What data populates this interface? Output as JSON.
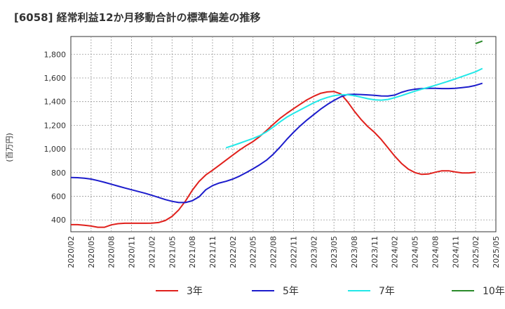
{
  "chart_data": {
    "type": "line",
    "title": "[6058]  経常利益12か月移動合計の標準偏差の推移",
    "ylabel": "(百万円)",
    "xlabel": "",
    "ylim": [
      300,
      1950
    ],
    "yticks": [
      400,
      600,
      800,
      1000,
      1200,
      1400,
      1600,
      1800
    ],
    "ytick_labels": [
      "400",
      "600",
      "800",
      "1,000",
      "1,200",
      "1,400",
      "1,600",
      "1,800"
    ],
    "xticks": [
      "2020/02",
      "2020/05",
      "2020/08",
      "2020/11",
      "2021/02",
      "2021/05",
      "2021/08",
      "2021/11",
      "2022/02",
      "2022/05",
      "2022/08",
      "2022/11",
      "2023/02",
      "2023/05",
      "2023/08",
      "2023/11",
      "2024/02",
      "2024/05",
      "2024/08",
      "2024/11",
      "2025/02",
      "2025/05"
    ],
    "grid": true,
    "legend_position": "bottom",
    "series": [
      {
        "name": "3年",
        "color": "#e0201c",
        "points": [
          [
            "2020/02",
            360
          ],
          [
            "2020/03",
            360
          ],
          [
            "2020/04",
            355
          ],
          [
            "2020/05",
            348
          ],
          [
            "2020/06",
            338
          ],
          [
            "2020/07",
            338
          ],
          [
            "2020/08",
            358
          ],
          [
            "2020/09",
            368
          ],
          [
            "2020/10",
            372
          ],
          [
            "2020/11",
            372
          ],
          [
            "2020/12",
            372
          ],
          [
            "2021/01",
            372
          ],
          [
            "2021/02",
            373
          ],
          [
            "2021/03",
            378
          ],
          [
            "2021/04",
            395
          ],
          [
            "2021/05",
            430
          ],
          [
            "2021/06",
            485
          ],
          [
            "2021/07",
            560
          ],
          [
            "2021/08",
            650
          ],
          [
            "2021/09",
            725
          ],
          [
            "2021/10",
            780
          ],
          [
            "2021/11",
            820
          ],
          [
            "2021/12",
            862
          ],
          [
            "2022/01",
            905
          ],
          [
            "2022/02",
            948
          ],
          [
            "2022/03",
            990
          ],
          [
            "2022/04",
            1028
          ],
          [
            "2022/05",
            1062
          ],
          [
            "2022/06",
            1105
          ],
          [
            "2022/07",
            1155
          ],
          [
            "2022/08",
            1208
          ],
          [
            "2022/09",
            1258
          ],
          [
            "2022/10",
            1300
          ],
          [
            "2022/11",
            1340
          ],
          [
            "2022/12",
            1378
          ],
          [
            "2023/01",
            1415
          ],
          [
            "2023/02",
            1445
          ],
          [
            "2023/03",
            1470
          ],
          [
            "2023/04",
            1482
          ],
          [
            "2023/05",
            1485
          ],
          [
            "2023/06",
            1465
          ],
          [
            "2023/07",
            1400
          ],
          [
            "2023/08",
            1320
          ],
          [
            "2023/09",
            1250
          ],
          [
            "2023/10",
            1190
          ],
          [
            "2023/11",
            1140
          ],
          [
            "2023/12",
            1080
          ],
          [
            "2024/01",
            1010
          ],
          [
            "2024/02",
            940
          ],
          [
            "2024/03",
            878
          ],
          [
            "2024/04",
            830
          ],
          [
            "2024/05",
            800
          ],
          [
            "2024/06",
            785
          ],
          [
            "2024/07",
            788
          ],
          [
            "2024/08",
            803
          ],
          [
            "2024/09",
            815
          ],
          [
            "2024/10",
            815
          ],
          [
            "2024/11",
            805
          ],
          [
            "2024/12",
            797
          ],
          [
            "2025/01",
            797
          ],
          [
            "2025/02",
            803
          ]
        ]
      },
      {
        "name": "5年",
        "color": "#1c1ccc",
        "points": [
          [
            "2020/02",
            758
          ],
          [
            "2020/03",
            757
          ],
          [
            "2020/04",
            753
          ],
          [
            "2020/05",
            745
          ],
          [
            "2020/06",
            732
          ],
          [
            "2020/07",
            718
          ],
          [
            "2020/08",
            702
          ],
          [
            "2020/09",
            686
          ],
          [
            "2020/10",
            670
          ],
          [
            "2020/11",
            655
          ],
          [
            "2020/12",
            640
          ],
          [
            "2021/01",
            625
          ],
          [
            "2021/02",
            608
          ],
          [
            "2021/03",
            590
          ],
          [
            "2021/04",
            572
          ],
          [
            "2021/05",
            557
          ],
          [
            "2021/06",
            547
          ],
          [
            "2021/07",
            547
          ],
          [
            "2021/08",
            562
          ],
          [
            "2021/09",
            595
          ],
          [
            "2021/10",
            655
          ],
          [
            "2021/11",
            690
          ],
          [
            "2021/12",
            712
          ],
          [
            "2022/01",
            726
          ],
          [
            "2022/02",
            745
          ],
          [
            "2022/03",
            770
          ],
          [
            "2022/04",
            800
          ],
          [
            "2022/05",
            832
          ],
          [
            "2022/06",
            866
          ],
          [
            "2022/07",
            905
          ],
          [
            "2022/08",
            955
          ],
          [
            "2022/09",
            1015
          ],
          [
            "2022/10",
            1080
          ],
          [
            "2022/11",
            1140
          ],
          [
            "2022/12",
            1195
          ],
          [
            "2023/01",
            1245
          ],
          [
            "2023/02",
            1290
          ],
          [
            "2023/03",
            1335
          ],
          [
            "2023/04",
            1375
          ],
          [
            "2023/05",
            1410
          ],
          [
            "2023/06",
            1440
          ],
          [
            "2023/07",
            1460
          ],
          [
            "2023/08",
            1462
          ],
          [
            "2023/09",
            1460
          ],
          [
            "2023/10",
            1457
          ],
          [
            "2023/11",
            1453
          ],
          [
            "2023/12",
            1448
          ],
          [
            "2024/01",
            1447
          ],
          [
            "2024/02",
            1455
          ],
          [
            "2024/03",
            1478
          ],
          [
            "2024/04",
            1495
          ],
          [
            "2024/05",
            1505
          ],
          [
            "2024/06",
            1510
          ],
          [
            "2024/07",
            1512
          ],
          [
            "2024/08",
            1512
          ],
          [
            "2024/09",
            1510
          ],
          [
            "2024/10",
            1510
          ],
          [
            "2024/11",
            1512
          ],
          [
            "2024/12",
            1518
          ],
          [
            "2025/01",
            1525
          ],
          [
            "2025/02",
            1537
          ],
          [
            "2025/03",
            1555
          ]
        ]
      },
      {
        "name": "7年",
        "color": "#22e8e8",
        "points": [
          [
            "2022/01",
            1010
          ],
          [
            "2022/02",
            1028
          ],
          [
            "2022/03",
            1048
          ],
          [
            "2022/04",
            1068
          ],
          [
            "2022/05",
            1088
          ],
          [
            "2022/06",
            1112
          ],
          [
            "2022/07",
            1145
          ],
          [
            "2022/08",
            1185
          ],
          [
            "2022/09",
            1228
          ],
          [
            "2022/10",
            1268
          ],
          [
            "2022/11",
            1300
          ],
          [
            "2022/12",
            1330
          ],
          [
            "2023/01",
            1360
          ],
          [
            "2023/02",
            1390
          ],
          [
            "2023/03",
            1415
          ],
          [
            "2023/04",
            1435
          ],
          [
            "2023/05",
            1450
          ],
          [
            "2023/06",
            1458
          ],
          [
            "2023/07",
            1458
          ],
          [
            "2023/08",
            1450
          ],
          [
            "2023/09",
            1438
          ],
          [
            "2023/10",
            1425
          ],
          [
            "2023/11",
            1415
          ],
          [
            "2023/12",
            1412
          ],
          [
            "2024/01",
            1418
          ],
          [
            "2024/02",
            1433
          ],
          [
            "2024/03",
            1450
          ],
          [
            "2024/04",
            1470
          ],
          [
            "2024/05",
            1488
          ],
          [
            "2024/06",
            1505
          ],
          [
            "2024/07",
            1520
          ],
          [
            "2024/08",
            1537
          ],
          [
            "2024/09",
            1555
          ],
          [
            "2024/10",
            1573
          ],
          [
            "2024/11",
            1592
          ],
          [
            "2024/12",
            1612
          ],
          [
            "2025/01",
            1632
          ],
          [
            "2025/02",
            1652
          ],
          [
            "2025/03",
            1680
          ]
        ]
      },
      {
        "name": "10年",
        "color": "#2a8a2a",
        "points": [
          [
            "2025/02",
            1890
          ],
          [
            "2025/03",
            1912
          ]
        ]
      }
    ]
  }
}
